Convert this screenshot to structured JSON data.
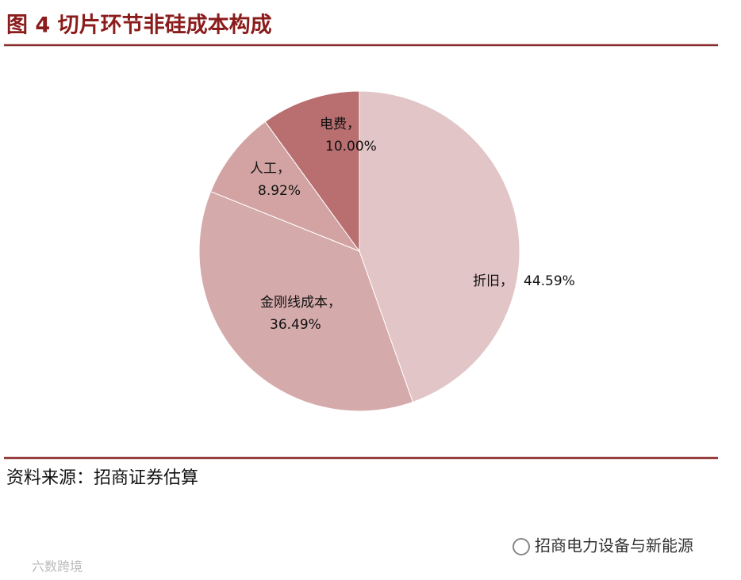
{
  "chart_data": {
    "type": "pie",
    "title": "图 4  切片环节非硅成本构成",
    "categories": [
      "折旧，",
      "金刚线成本，",
      "人工，",
      "电费，"
    ],
    "values": [
      44.59,
      36.49,
      8.92,
      10.0
    ],
    "value_labels": [
      "44.59%",
      "36.49%",
      "8.92%",
      "10.00%"
    ],
    "colors": [
      "#e2c5c6",
      "#d5aaab",
      "#d3a3a3",
      "#b96e6f"
    ]
  },
  "source": "资料来源：招商证券估算",
  "watermark": {
    "right": "招商电力设备与新能源",
    "left": "六数跨境"
  }
}
